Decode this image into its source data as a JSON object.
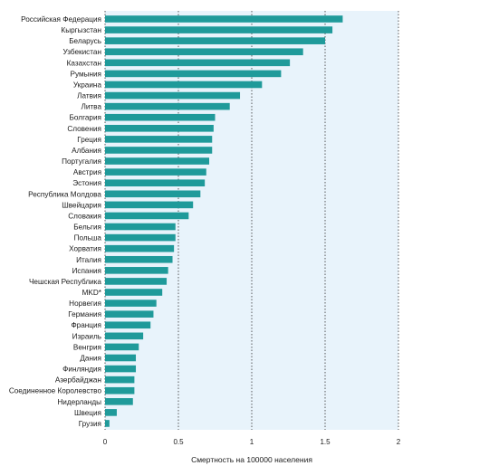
{
  "chart_data": {
    "type": "bar",
    "orientation": "horizontal",
    "xlabel": "Смертность на 100000 населения",
    "xlim": [
      0,
      2
    ],
    "xticks": [
      0,
      0.5,
      1,
      1.5,
      2
    ],
    "xtick_labels": [
      "0",
      "0.5",
      "1",
      "1.5",
      "2"
    ],
    "grid": "vertical dotted",
    "categories": [
      "Российская Федерация",
      "Кыргызстан",
      "Беларусь",
      "Узбекистан",
      "Казахстан",
      "Румыния",
      "Украина",
      "Латвия",
      "Литва",
      "Болгария",
      "Словения",
      "Греция",
      "Албания",
      "Португалия",
      "Австрия",
      "Эстония",
      "Республика Молдова",
      "Швейцария",
      "Словакия",
      "Бельгия",
      "Польша",
      "Хорватия",
      "Италия",
      "Испания",
      "Чешская Республика",
      "MKD*",
      "Норвегия",
      "Германия",
      "Франция",
      "Израиль",
      "Венгрия",
      "Дания",
      "Финляндия",
      "Азербайджан",
      "Соединенное Королевство",
      "Нидерланды",
      "Швеция",
      "Грузия"
    ],
    "values": [
      1.62,
      1.55,
      1.5,
      1.35,
      1.26,
      1.2,
      1.07,
      0.92,
      0.85,
      0.75,
      0.74,
      0.73,
      0.73,
      0.71,
      0.69,
      0.68,
      0.65,
      0.6,
      0.57,
      0.48,
      0.48,
      0.47,
      0.46,
      0.43,
      0.42,
      0.39,
      0.35,
      0.33,
      0.31,
      0.26,
      0.23,
      0.21,
      0.21,
      0.2,
      0.2,
      0.19,
      0.08,
      0.03
    ],
    "colors": {
      "bar": "#1f9a9a",
      "plot_background": "#e8f3fb",
      "grid": "#333333"
    }
  }
}
